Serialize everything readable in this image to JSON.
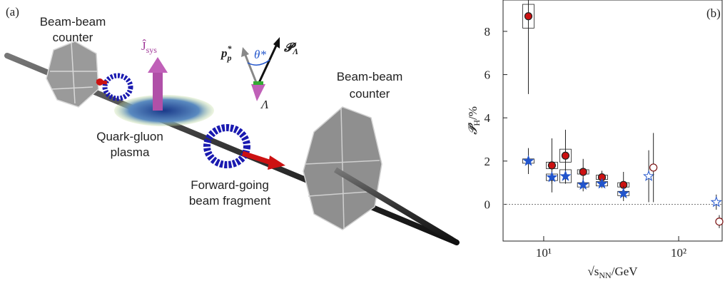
{
  "diagram": {
    "panel_label": "(a)",
    "left_counter": [
      "Beam-beam",
      "counter"
    ],
    "right_counter": [
      "Beam-beam",
      "counter"
    ],
    "plasma": [
      "Quark-gluon",
      "plasma"
    ],
    "fragment": [
      "Forward-going",
      "beam fragment"
    ],
    "j_sys": {
      "main": "Ĵ",
      "sub": "sys"
    },
    "p_star": {
      "main": "p",
      "sup": "*",
      "sub": "p"
    },
    "theta": "θ*",
    "p_lambda": {
      "main": "𝓟",
      "sub": "Λ"
    },
    "lambda": "Λ"
  },
  "chart_data": {
    "type": "scatter",
    "panel_label": "(b)",
    "xlabel": {
      "main": "√s",
      "sub": "NN",
      "rest": "/GeV"
    },
    "ylabel": {
      "main": "𝓟̄",
      "sub": "H",
      "rest": "/%"
    },
    "xlog": true,
    "xlim": [
      5,
      210
    ],
    "ylim": [
      -1.7,
      9.45
    ],
    "xticks": [
      {
        "value": 10,
        "label": "10¹"
      },
      {
        "value": 100,
        "label": "10²"
      }
    ],
    "yticks": [
      0,
      2,
      4,
      6,
      8
    ],
    "reference_line": 0,
    "series": [
      {
        "marker": "circle",
        "color": "#cc1111",
        "filled": true,
        "x": [
          7.7,
          11.5,
          14.5,
          19.6,
          27,
          39
        ],
        "values": [
          8.7,
          1.8,
          2.25,
          1.5,
          1.25,
          0.9
        ],
        "errors": [
          3.6,
          1.25,
          1.2,
          0.6,
          0.3,
          0.6
        ],
        "sys": [
          0.55,
          0.15,
          0.3,
          0.1,
          0.1,
          0.1
        ]
      },
      {
        "marker": "star",
        "color": "#2255cc",
        "filled": true,
        "x": [
          7.7,
          11.5,
          14.5,
          19.6,
          27,
          39
        ],
        "values": [
          2.0,
          1.25,
          1.3,
          0.9,
          0.95,
          0.5
        ],
        "errors": [
          0.6,
          0.3,
          0.35,
          0.3,
          0.2,
          0.35
        ],
        "sys": [
          0.1,
          0.15,
          0.3,
          0.1,
          0.1,
          0.1
        ]
      },
      {
        "marker": "star",
        "color": "#2255cc",
        "filled": false,
        "x": [
          60,
          190
        ],
        "values": [
          1.3,
          0.1
        ],
        "errors": [
          1.2,
          0.35
        ]
      },
      {
        "marker": "circle",
        "color": "#7a1010",
        "filled": false,
        "x": [
          65,
          200
        ],
        "values": [
          1.7,
          -0.8
        ],
        "errors": [
          1.6,
          0.3
        ]
      }
    ]
  }
}
